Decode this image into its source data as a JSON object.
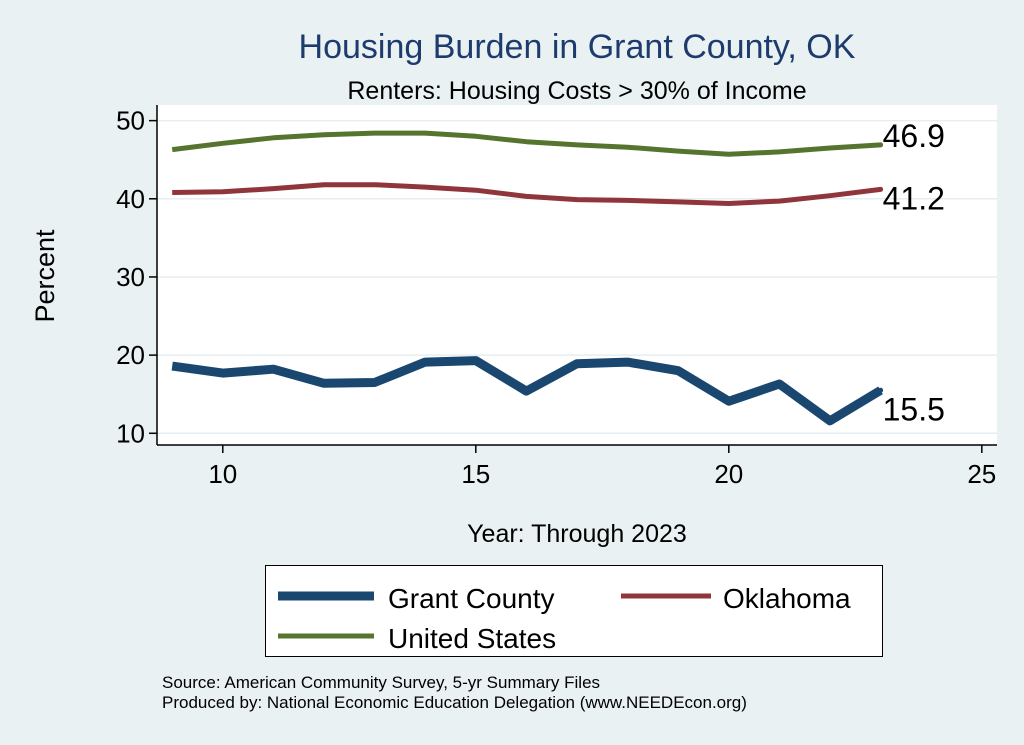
{
  "chart_data": {
    "type": "line",
    "title": "Housing Burden in Grant County, OK",
    "subtitle": "Renters: Housing Costs > 30% of Income",
    "xlabel": "Year: Through 2023",
    "ylabel": "Percent",
    "xlim": [
      8.7,
      25.3
    ],
    "ylim": [
      8.5,
      52
    ],
    "xticks": [
      10,
      15,
      20,
      25
    ],
    "yticks": [
      10,
      20,
      30,
      40,
      50
    ],
    "grid": true,
    "legend_position": "bottom",
    "x": [
      9,
      10,
      11,
      12,
      13,
      14,
      15,
      16,
      17,
      18,
      19,
      20,
      21,
      22,
      23
    ],
    "series": [
      {
        "name": "Grant County",
        "color": "#1a476f",
        "line_width": "thick",
        "values": [
          18.6,
          17.7,
          18.2,
          16.4,
          16.5,
          19.1,
          19.3,
          15.4,
          18.9,
          19.1,
          18.0,
          14.1,
          16.3,
          11.6,
          15.5
        ],
        "end_label": "15.5"
      },
      {
        "name": "Oklahoma",
        "color": "#90353b",
        "line_width": "medium",
        "values": [
          40.8,
          40.9,
          41.3,
          41.8,
          41.8,
          41.5,
          41.1,
          40.3,
          39.9,
          39.8,
          39.6,
          39.4,
          39.7,
          40.4,
          41.2
        ],
        "end_label": "41.2"
      },
      {
        "name": "United States",
        "color": "#55752f",
        "line_width": "medium",
        "values": [
          46.3,
          47.1,
          47.8,
          48.2,
          48.4,
          48.4,
          48.0,
          47.3,
          46.9,
          46.6,
          46.1,
          45.7,
          46.0,
          46.5,
          46.9
        ],
        "end_label": "46.9"
      }
    ]
  },
  "legend": {
    "items": [
      {
        "label": "Grant County",
        "color": "#1a476f"
      },
      {
        "label": "Oklahoma",
        "color": "#90353b"
      },
      {
        "label": "United States",
        "color": "#55752f"
      }
    ]
  },
  "source": {
    "line1": "Source: American Community Survey, 5-yr Summary Files",
    "line2": "Produced by: National Economic Education Delegation (www.NEEDEcon.org)"
  }
}
